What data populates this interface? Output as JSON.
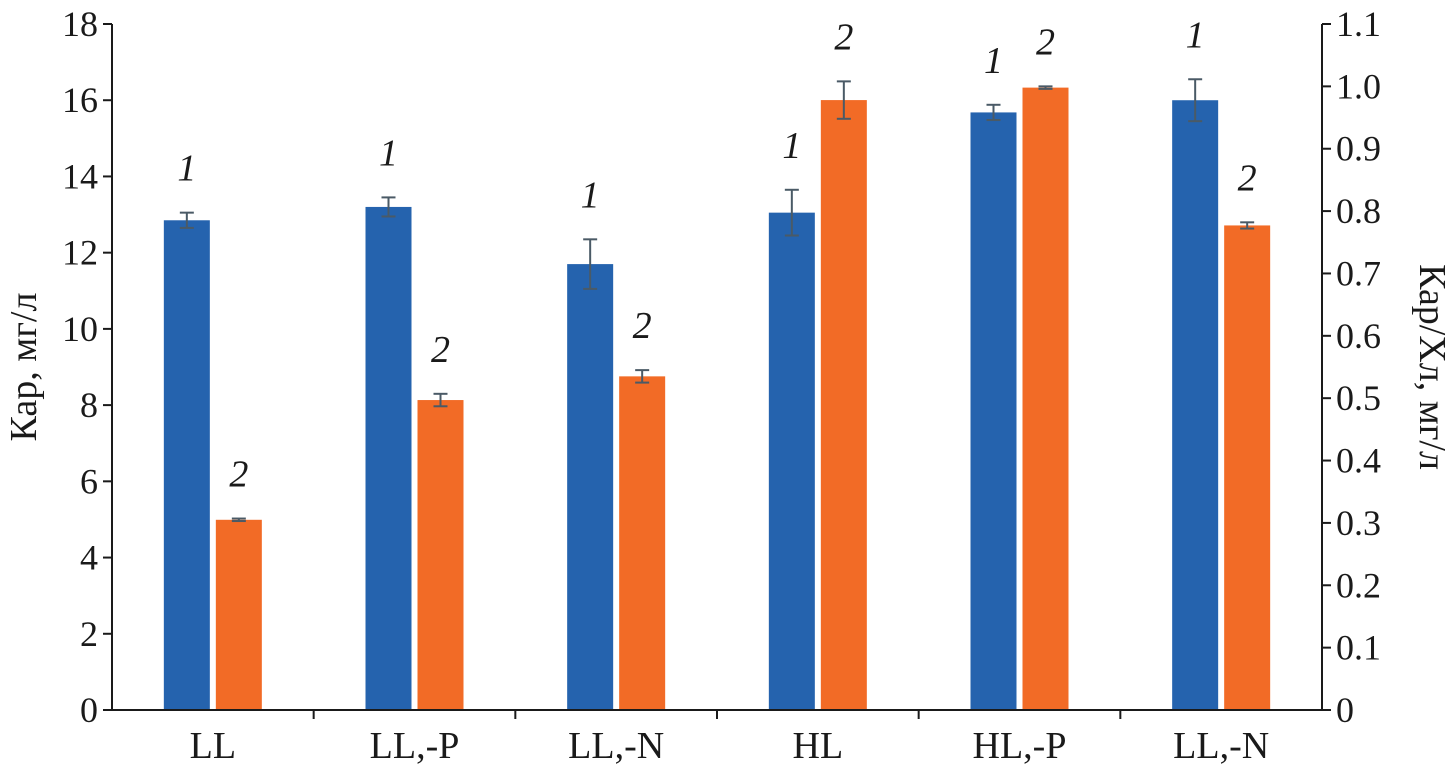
{
  "chart_data": {
    "type": "bar",
    "categories": [
      "LL",
      "LL,-P",
      "LL,-N",
      "HL",
      "HL,-P",
      "LL,-N"
    ],
    "series": [
      {
        "label": "1",
        "axis": "left",
        "color": "#2563ae",
        "values": [
          12.85,
          13.2,
          11.7,
          13.05,
          15.68,
          16.0
        ],
        "errors": [
          0.2,
          0.25,
          0.65,
          0.6,
          0.2,
          0.55
        ]
      },
      {
        "label": "2",
        "axis": "right",
        "color": "#f26b26",
        "values": [
          0.305,
          0.497,
          0.535,
          0.978,
          0.998,
          0.777
        ],
        "errors": [
          0.002,
          0.01,
          0.01,
          0.03,
          0.002,
          0.005
        ]
      }
    ],
    "ylabel": "Кар, мг/л",
    "y2label": "Кар/Хл, мг/л",
    "ylim": [
      0,
      18
    ],
    "y2lim": [
      0,
      1.1
    ],
    "yticks": [
      "0",
      "2",
      "4",
      "6",
      "8",
      "10",
      "12",
      "14",
      "16",
      "18"
    ],
    "y2ticks": [
      "0",
      "0.1",
      "0.2",
      "0.3",
      "0.4",
      "0.5",
      "0.6",
      "0.7",
      "0.8",
      "0.9",
      "1.0",
      "1.1"
    ],
    "grid": false,
    "legend": "none"
  }
}
